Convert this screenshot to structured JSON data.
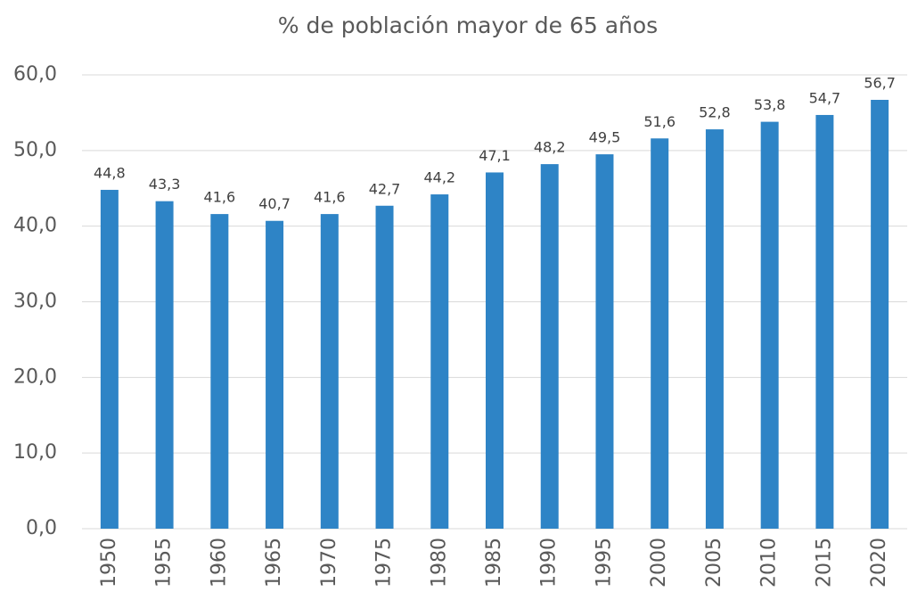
{
  "chart_data": {
    "type": "bar",
    "title": "% de población mayor de 65 años",
    "categories": [
      "1950",
      "1955",
      "1960",
      "1965",
      "1970",
      "1975",
      "1980",
      "1985",
      "1990",
      "1995",
      "2000",
      "2005",
      "2010",
      "2015",
      "2020"
    ],
    "values": [
      44.8,
      43.3,
      41.6,
      40.7,
      41.6,
      42.7,
      44.2,
      47.1,
      48.2,
      49.5,
      51.6,
      52.8,
      53.8,
      54.7,
      56.7
    ],
    "value_labels": [
      "44,8",
      "43,3",
      "41,6",
      "40,7",
      "41,6",
      "42,7",
      "44,2",
      "47,1",
      "48,2",
      "49,5",
      "51,6",
      "52,8",
      "53,8",
      "54,7",
      "56,7"
    ],
    "color": "#2e84c6",
    "ylim": [
      0,
      60
    ],
    "yticks": [
      {
        "value": 0,
        "label": "0,0"
      },
      {
        "value": 10,
        "label": "10,0"
      },
      {
        "value": 20,
        "label": "20,0"
      },
      {
        "value": 30,
        "label": "30,0"
      },
      {
        "value": 40,
        "label": "40,0"
      },
      {
        "value": 50,
        "label": "50,0"
      },
      {
        "value": 60,
        "label": "60,0"
      }
    ],
    "grid": true
  }
}
